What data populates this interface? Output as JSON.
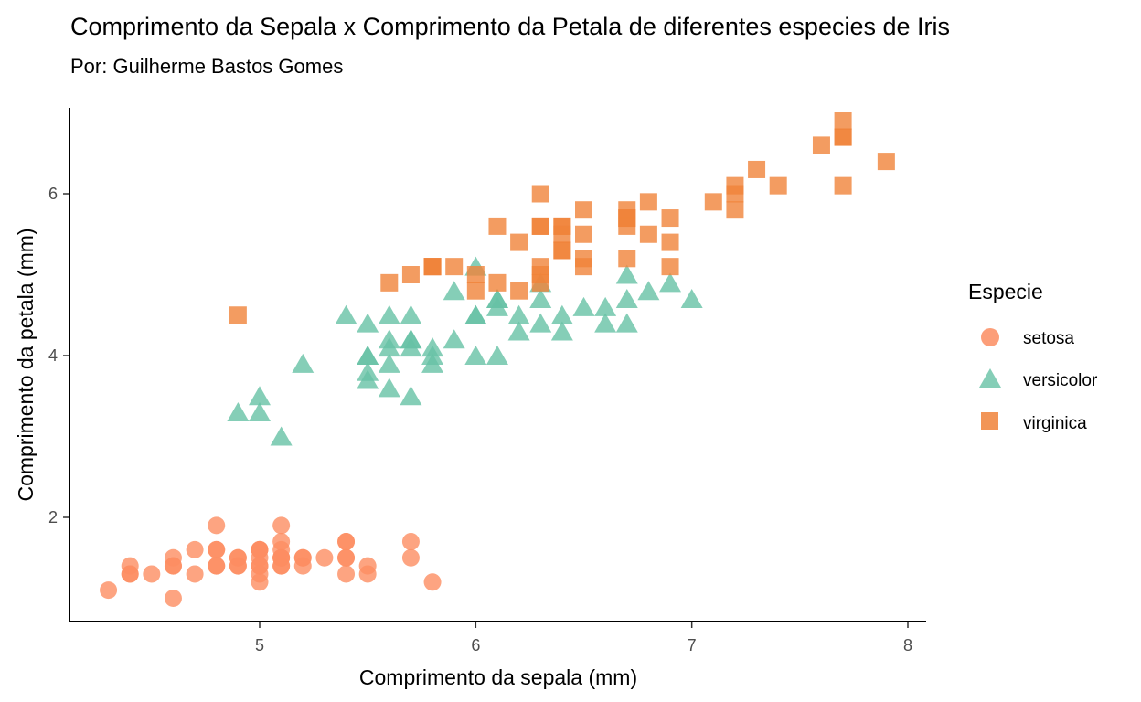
{
  "chart_data": {
    "type": "scatter",
    "title": "Comprimento da Sepala x Comprimento da Petala de diferentes especies de Iris",
    "subtitle": "Por: Guilherme Bastos Gomes",
    "xlabel": "Comprimento da sepala (mm)",
    "ylabel": "Comprimento da petala (mm)",
    "xlim": [
      4.2,
      8.1
    ],
    "ylim": [
      0.75,
      7.1
    ],
    "xticks": [
      "5",
      "6",
      "7",
      "8"
    ],
    "yticks": [
      "2",
      "4",
      "6"
    ],
    "xtick_values": [
      5,
      6,
      7,
      8
    ],
    "ytick_values": [
      2,
      4,
      6
    ],
    "grid": false,
    "legend": {
      "title": "Especie",
      "position": "right"
    },
    "series": [
      {
        "name": "setosa",
        "shape": "circle",
        "color": "#FC8D62",
        "points": [
          [
            5.1,
            1.4
          ],
          [
            4.9,
            1.4
          ],
          [
            4.7,
            1.3
          ],
          [
            4.6,
            1.5
          ],
          [
            5.0,
            1.4
          ],
          [
            5.4,
            1.7
          ],
          [
            4.6,
            1.4
          ],
          [
            5.0,
            1.5
          ],
          [
            4.4,
            1.4
          ],
          [
            4.9,
            1.5
          ],
          [
            5.4,
            1.5
          ],
          [
            4.8,
            1.6
          ],
          [
            4.8,
            1.4
          ],
          [
            4.3,
            1.1
          ],
          [
            5.8,
            1.2
          ],
          [
            5.7,
            1.5
          ],
          [
            5.4,
            1.3
          ],
          [
            5.1,
            1.4
          ],
          [
            5.7,
            1.7
          ],
          [
            5.1,
            1.5
          ],
          [
            5.4,
            1.7
          ],
          [
            5.1,
            1.5
          ],
          [
            4.6,
            1.0
          ],
          [
            5.1,
            1.7
          ],
          [
            4.8,
            1.9
          ],
          [
            5.0,
            1.6
          ],
          [
            5.0,
            1.6
          ],
          [
            5.2,
            1.5
          ],
          [
            5.2,
            1.4
          ],
          [
            4.7,
            1.6
          ],
          [
            4.8,
            1.6
          ],
          [
            5.4,
            1.5
          ],
          [
            5.2,
            1.5
          ],
          [
            5.5,
            1.4
          ],
          [
            4.9,
            1.5
          ],
          [
            5.0,
            1.2
          ],
          [
            5.5,
            1.3
          ],
          [
            4.9,
            1.4
          ],
          [
            4.4,
            1.3
          ],
          [
            5.1,
            1.5
          ],
          [
            5.0,
            1.3
          ],
          [
            4.5,
            1.3
          ],
          [
            4.4,
            1.3
          ],
          [
            5.0,
            1.6
          ],
          [
            5.1,
            1.9
          ],
          [
            4.8,
            1.4
          ],
          [
            5.1,
            1.6
          ],
          [
            4.6,
            1.4
          ],
          [
            5.3,
            1.5
          ],
          [
            5.0,
            1.4
          ]
        ]
      },
      {
        "name": "versicolor",
        "shape": "triangle",
        "color": "#66C2A5",
        "points": [
          [
            7.0,
            4.7
          ],
          [
            6.4,
            4.5
          ],
          [
            6.9,
            4.9
          ],
          [
            5.5,
            4.0
          ],
          [
            6.5,
            4.6
          ],
          [
            5.7,
            4.5
          ],
          [
            6.3,
            4.7
          ],
          [
            4.9,
            3.3
          ],
          [
            6.6,
            4.6
          ],
          [
            5.2,
            3.9
          ],
          [
            5.0,
            3.5
          ],
          [
            5.9,
            4.2
          ],
          [
            6.0,
            4.0
          ],
          [
            6.1,
            4.7
          ],
          [
            5.6,
            3.6
          ],
          [
            6.7,
            4.4
          ],
          [
            5.6,
            4.5
          ],
          [
            5.8,
            4.1
          ],
          [
            6.2,
            4.5
          ],
          [
            5.6,
            3.9
          ],
          [
            5.9,
            4.8
          ],
          [
            6.1,
            4.0
          ],
          [
            6.3,
            4.9
          ],
          [
            6.1,
            4.7
          ],
          [
            6.4,
            4.3
          ],
          [
            6.6,
            4.4
          ],
          [
            6.8,
            4.8
          ],
          [
            6.7,
            5.0
          ],
          [
            6.0,
            4.5
          ],
          [
            5.7,
            3.5
          ],
          [
            5.5,
            3.8
          ],
          [
            5.5,
            3.7
          ],
          [
            5.8,
            3.9
          ],
          [
            6.0,
            5.1
          ],
          [
            5.4,
            4.5
          ],
          [
            6.0,
            4.5
          ],
          [
            6.7,
            4.7
          ],
          [
            6.3,
            4.4
          ],
          [
            5.6,
            4.1
          ],
          [
            5.5,
            4.0
          ],
          [
            5.5,
            4.4
          ],
          [
            6.1,
            4.6
          ],
          [
            5.8,
            4.0
          ],
          [
            5.0,
            3.3
          ],
          [
            5.6,
            4.2
          ],
          [
            5.7,
            4.2
          ],
          [
            5.7,
            4.2
          ],
          [
            6.2,
            4.3
          ],
          [
            5.1,
            3.0
          ],
          [
            5.7,
            4.1
          ]
        ]
      },
      {
        "name": "virginica",
        "shape": "square",
        "color": "#F0833A",
        "points": [
          [
            6.3,
            6.0
          ],
          [
            5.8,
            5.1
          ],
          [
            7.1,
            5.9
          ],
          [
            6.3,
            5.6
          ],
          [
            6.5,
            5.8
          ],
          [
            7.6,
            6.6
          ],
          [
            4.9,
            4.5
          ],
          [
            7.3,
            6.3
          ],
          [
            6.7,
            5.8
          ],
          [
            7.2,
            6.1
          ],
          [
            6.5,
            5.1
          ],
          [
            6.4,
            5.3
          ],
          [
            6.8,
            5.5
          ],
          [
            5.7,
            5.0
          ],
          [
            5.8,
            5.1
          ],
          [
            6.4,
            5.3
          ],
          [
            6.5,
            5.5
          ],
          [
            7.7,
            6.7
          ],
          [
            7.7,
            6.9
          ],
          [
            6.0,
            5.0
          ],
          [
            6.9,
            5.7
          ],
          [
            5.6,
            4.9
          ],
          [
            7.7,
            6.7
          ],
          [
            6.3,
            4.9
          ],
          [
            6.7,
            5.7
          ],
          [
            7.2,
            6.0
          ],
          [
            6.2,
            4.8
          ],
          [
            6.1,
            4.9
          ],
          [
            6.4,
            5.6
          ],
          [
            7.2,
            5.8
          ],
          [
            7.4,
            6.1
          ],
          [
            7.9,
            6.4
          ],
          [
            6.4,
            5.6
          ],
          [
            6.3,
            5.1
          ],
          [
            6.1,
            5.6
          ],
          [
            7.7,
            6.1
          ],
          [
            6.3,
            5.6
          ],
          [
            6.4,
            5.5
          ],
          [
            6.0,
            4.8
          ],
          [
            6.9,
            5.4
          ],
          [
            6.7,
            5.6
          ],
          [
            6.9,
            5.1
          ],
          [
            5.8,
            5.1
          ],
          [
            6.8,
            5.9
          ],
          [
            6.7,
            5.7
          ],
          [
            6.7,
            5.2
          ],
          [
            6.3,
            5.0
          ],
          [
            6.5,
            5.2
          ],
          [
            6.2,
            5.4
          ],
          [
            5.9,
            5.1
          ]
        ]
      }
    ]
  }
}
